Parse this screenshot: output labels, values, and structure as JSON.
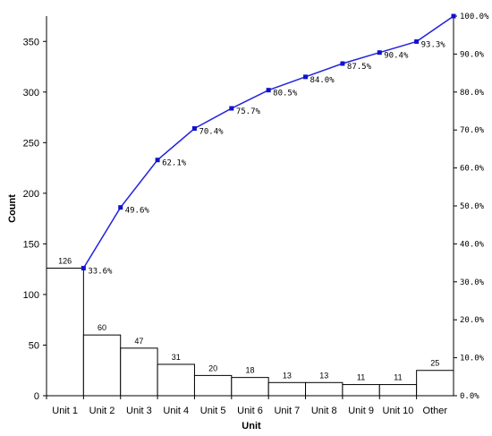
{
  "chart_data": {
    "type": "bar",
    "title": "",
    "xlabel": "Unit",
    "ylabel": "Count",
    "ylim": [
      0,
      375
    ],
    "y_ticks": [
      0,
      50,
      100,
      150,
      200,
      250,
      300,
      350
    ],
    "y2lim": [
      0,
      100
    ],
    "y2_ticks": [
      "0.0%",
      "10.0%",
      "20.0%",
      "30.0%",
      "40.0%",
      "50.0%",
      "60.0%",
      "70.0%",
      "80.0%",
      "90.0%",
      "100.0%"
    ],
    "categories": [
      "Unit 1",
      "Unit 2",
      "Unit 3",
      "Unit 4",
      "Unit 5",
      "Unit 6",
      "Unit 7",
      "Unit 8",
      "Unit 9",
      "Unit 10",
      "Other"
    ],
    "series": [
      {
        "type": "bar",
        "values": [
          126,
          60,
          47,
          31,
          20,
          18,
          13,
          13,
          11,
          11,
          25
        ]
      },
      {
        "type": "line",
        "axis": "secondary",
        "values": [
          33.6,
          49.6,
          62.1,
          70.4,
          75.7,
          80.5,
          84.0,
          87.5,
          90.4,
          93.3,
          100.0
        ],
        "labels": [
          "33.6%",
          "49.6%",
          "62.1%",
          "70.4%",
          "75.7%",
          "80.5%",
          "84.0%",
          "87.5%",
          "90.4%",
          "93.3%",
          ""
        ]
      }
    ],
    "colors": {
      "bars": "#ffffff",
      "bar_border": "#000000",
      "line": "#2222dd",
      "markers": "#1111cc"
    },
    "grid": false
  }
}
